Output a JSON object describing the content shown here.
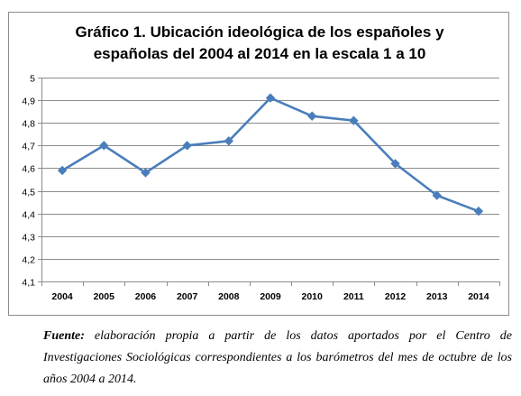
{
  "chart_title_lines": [
    "Gráfico 1. Ubicación ideológica de los españoles y",
    "españolas del 2004 al 2014 en la escala 1 a 10"
  ],
  "source": {
    "lead": "Fuente:",
    "text": "elaboración propia a partir de los datos aportados por el Centro de Investigaciones Sociológicas correspondientes a los barómetros del mes de octubre de los años 2004 a 2014."
  },
  "colors": {
    "series": "#4a7ebb",
    "grid": "#8c8c8c",
    "axis": "#8c8c8c"
  },
  "chart_data": {
    "type": "line",
    "title": "Gráfico 1. Ubicación ideológica de los españoles y españolas del 2004 al 2014 en la escala 1 a 10",
    "categories": [
      "2004",
      "2005",
      "2006",
      "2007",
      "2008",
      "2009",
      "2010",
      "2011",
      "2012",
      "2013",
      "2014"
    ],
    "series": [
      {
        "values": [
          4.59,
          4.7,
          4.58,
          4.7,
          4.72,
          4.91,
          4.83,
          4.81,
          4.62,
          4.48,
          4.41
        ]
      }
    ],
    "ylim": [
      4.1,
      5
    ],
    "yticks": [
      "4,1",
      "4,2",
      "4,3",
      "4,4",
      "4,5",
      "4,6",
      "4,7",
      "4,8",
      "4,9",
      "5"
    ],
    "xlabel": "",
    "ylabel": "",
    "grid": true,
    "legend": "none",
    "marker": "diamond"
  }
}
